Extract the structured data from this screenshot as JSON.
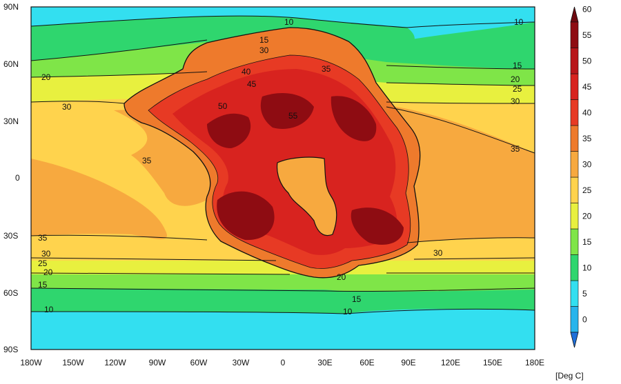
{
  "map": {
    "y_ticks": [
      "90N",
      "60N",
      "30N",
      "0",
      "30S",
      "60S",
      "90S"
    ],
    "x_ticks": [
      "180W",
      "150W",
      "120W",
      "90W",
      "60W",
      "30W",
      "0",
      "30E",
      "60E",
      "90E",
      "120E",
      "150E",
      "180E"
    ],
    "contour_labels": [
      "10",
      "10",
      "15",
      "30",
      "40",
      "20",
      "15",
      "20",
      "25",
      "30",
      "30",
      "35",
      "45",
      "50",
      "55",
      "35",
      "35",
      "35",
      "30",
      "25",
      "20",
      "15",
      "10",
      "20",
      "15",
      "10",
      "30"
    ],
    "units": "[Deg C]"
  },
  "colorbar": {
    "ticks": [
      "0",
      "5",
      "10",
      "15",
      "20",
      "25",
      "30",
      "35",
      "40",
      "45",
      "50",
      "55",
      "60"
    ],
    "colors": [
      "#1f6fd9",
      "#28b4ec",
      "#33dff0",
      "#2fd66e",
      "#7fe548",
      "#e8f03f",
      "#ffd34d",
      "#f7a93f",
      "#ee7a2c",
      "#e73a24",
      "#d8231f",
      "#b8161a",
      "#8e0c12",
      "#6e0a10"
    ]
  }
}
